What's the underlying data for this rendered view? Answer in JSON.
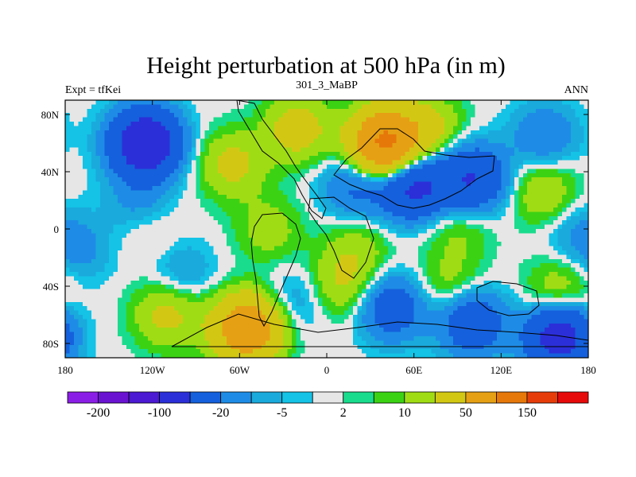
{
  "chart_data": {
    "type": "heatmap",
    "title": "Height perturbation at 500 hPa (in m)",
    "left_label": "Expt = tfKei",
    "center_label": "301_3_MaBP",
    "right_label": "ANN",
    "xlabel": "",
    "ylabel": "",
    "xlim": [
      -180,
      180
    ],
    "ylim": [
      -90,
      90
    ],
    "x_ticks": [
      {
        "value": -180,
        "label": "180"
      },
      {
        "value": -120,
        "label": "120W"
      },
      {
        "value": -60,
        "label": "60W"
      },
      {
        "value": 0,
        "label": "0"
      },
      {
        "value": 60,
        "label": "60E"
      },
      {
        "value": 120,
        "label": "120E"
      },
      {
        "value": 180,
        "label": "180"
      }
    ],
    "y_ticks": [
      {
        "value": 80,
        "label": "80N"
      },
      {
        "value": 40,
        "label": "40N"
      },
      {
        "value": 0,
        "label": "0"
      },
      {
        "value": -40,
        "label": "40S"
      },
      {
        "value": -80,
        "label": "80S"
      }
    ],
    "colorbar": {
      "colors": [
        "#8b1ee6",
        "#6a14d2",
        "#4b1ad2",
        "#2b2fd8",
        "#1560dc",
        "#1e8ce6",
        "#1aaadc",
        "#14c3e6",
        "#e6e6e6",
        "#19dc8c",
        "#3cd214",
        "#a0dc14",
        "#d2c814",
        "#e6a014",
        "#e6780a",
        "#e63c0a",
        "#e60a0a"
      ],
      "labels": [
        {
          "boundary": 1,
          "text": "-200"
        },
        {
          "boundary": 3,
          "text": "-100"
        },
        {
          "boundary": 5,
          "text": "-20"
        },
        {
          "boundary": 7,
          "text": "-5"
        },
        {
          "boundary": 9,
          "text": "2"
        },
        {
          "boundary": 11,
          "text": "10"
        },
        {
          "boundary": 13,
          "text": "50"
        },
        {
          "boundary": 15,
          "text": "150"
        }
      ]
    },
    "field_anomalies": [
      {
        "lon": -125,
        "lat": 60,
        "value": -90
      },
      {
        "lon": -65,
        "lat": 45,
        "value": 25
      },
      {
        "lon": -20,
        "lat": 70,
        "value": 30
      },
      {
        "lon": 40,
        "lat": 60,
        "value": 110
      },
      {
        "lon": 70,
        "lat": 70,
        "value": 25
      },
      {
        "lon": 60,
        "lat": 30,
        "value": -60
      },
      {
        "lon": 20,
        "lat": 30,
        "value": -25
      },
      {
        "lon": 100,
        "lat": 35,
        "value": -50
      },
      {
        "lon": 150,
        "lat": 65,
        "value": -20
      },
      {
        "lon": 150,
        "lat": 25,
        "value": 20
      },
      {
        "lon": -130,
        "lat": 20,
        "value": -12
      },
      {
        "lon": -170,
        "lat": -15,
        "value": -12
      },
      {
        "lon": -120,
        "lat": -5,
        "value": 6
      },
      {
        "lon": -40,
        "lat": 0,
        "value": 15
      },
      {
        "lon": 20,
        "lat": -15,
        "value": 15
      },
      {
        "lon": 90,
        "lat": 0,
        "value": 12
      },
      {
        "lon": 170,
        "lat": 0,
        "value": -10
      },
      {
        "lon": -100,
        "lat": -30,
        "value": -12
      },
      {
        "lon": -20,
        "lat": -50,
        "value": -12
      },
      {
        "lon": 10,
        "lat": -40,
        "value": 20
      },
      {
        "lon": 45,
        "lat": -55,
        "value": -35
      },
      {
        "lon": 100,
        "lat": -65,
        "value": -40
      },
      {
        "lon": 160,
        "lat": -75,
        "value": -70
      },
      {
        "lon": -55,
        "lat": -70,
        "value": 85
      },
      {
        "lon": -110,
        "lat": -60,
        "value": 25
      },
      {
        "lon": 160,
        "lat": -45,
        "value": 20
      },
      {
        "lon": 85,
        "lat": -40,
        "value": 15
      }
    ]
  }
}
